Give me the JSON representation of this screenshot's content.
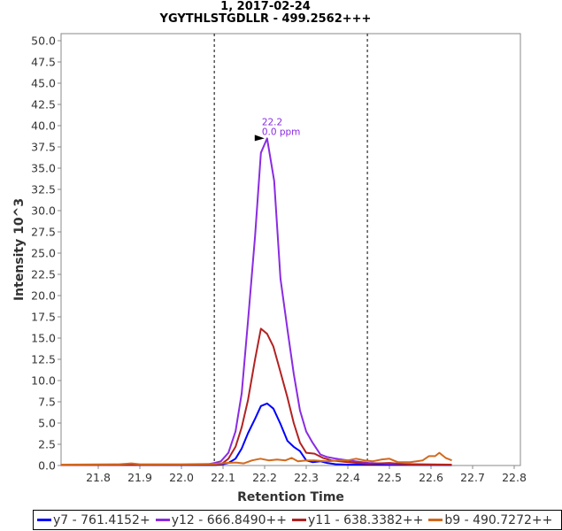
{
  "chart_data": {
    "type": "line",
    "title": "1, 2017-02-24",
    "subtitle": "YGYTHLSTGDLLR - 499.2562+++",
    "xlabel": "Retention Time",
    "ylabel": "Intensity 10^3",
    "xlim": [
      21.71,
      22.82
    ],
    "ylim": [
      0,
      51
    ],
    "xticks": [
      21.8,
      21.9,
      22.0,
      22.1,
      22.2,
      22.3,
      22.4,
      22.5,
      22.6,
      22.7,
      22.8
    ],
    "yticks": [
      0,
      2.5,
      5,
      7.5,
      10,
      12.5,
      15,
      17.5,
      20,
      22.5,
      25,
      27.5,
      30,
      32.5,
      35,
      37.5,
      40,
      42.5,
      45,
      47.5,
      50
    ],
    "boundaries": [
      22.079,
      22.447
    ],
    "annotation": {
      "x": 22.206,
      "y": 38.5,
      "lines": [
        "22.2",
        "0.0 ppm"
      ],
      "color": "#8a2be2"
    },
    "legend_position": "bottom",
    "series": [
      {
        "name": "y7 - 761.4152+",
        "color": "#0000ff",
        "points": [
          [
            21.71,
            0.05
          ],
          [
            22.08,
            0.05
          ],
          [
            22.1,
            0.15
          ],
          [
            22.113,
            0.3
          ],
          [
            22.13,
            0.8
          ],
          [
            22.145,
            2.0
          ],
          [
            22.16,
            3.8
          ],
          [
            22.177,
            5.5
          ],
          [
            22.191,
            7.0
          ],
          [
            22.206,
            7.3
          ],
          [
            22.221,
            6.7
          ],
          [
            22.238,
            4.9
          ],
          [
            22.255,
            2.9
          ],
          [
            22.27,
            2.2
          ],
          [
            22.285,
            1.7
          ],
          [
            22.3,
            0.6
          ],
          [
            22.315,
            0.4
          ],
          [
            22.334,
            0.5
          ],
          [
            22.35,
            0.3
          ],
          [
            22.372,
            0.15
          ],
          [
            22.4,
            0.1
          ],
          [
            22.65,
            0.05
          ]
        ]
      },
      {
        "name": "y12 - 666.8490++",
        "color": "#8a2be2",
        "points": [
          [
            21.71,
            0.1
          ],
          [
            22.06,
            0.1
          ],
          [
            22.08,
            0.3
          ],
          [
            22.095,
            0.5
          ],
          [
            22.113,
            1.5
          ],
          [
            22.13,
            4
          ],
          [
            22.145,
            8.5
          ],
          [
            22.16,
            17
          ],
          [
            22.177,
            27
          ],
          [
            22.191,
            36.8
          ],
          [
            22.206,
            38.5
          ],
          [
            22.223,
            33.5
          ],
          [
            22.238,
            22
          ],
          [
            22.255,
            16
          ],
          [
            22.27,
            10.8
          ],
          [
            22.285,
            6.5
          ],
          [
            22.3,
            4
          ],
          [
            22.315,
            2.7
          ],
          [
            22.334,
            1.3
          ],
          [
            22.35,
            1.0
          ],
          [
            22.372,
            0.8
          ],
          [
            22.4,
            0.6
          ],
          [
            22.45,
            0.3
          ],
          [
            22.5,
            0.2
          ],
          [
            22.65,
            0.1
          ]
        ]
      },
      {
        "name": "y11 - 638.3382++",
        "color": "#b22222",
        "points": [
          [
            21.71,
            0.05
          ],
          [
            22.08,
            0.1
          ],
          [
            22.097,
            0.2
          ],
          [
            22.113,
            0.8
          ],
          [
            22.13,
            2.2
          ],
          [
            22.145,
            4.5
          ],
          [
            22.16,
            7.7
          ],
          [
            22.177,
            12.5
          ],
          [
            22.191,
            16.1
          ],
          [
            22.206,
            15.5
          ],
          [
            22.221,
            14
          ],
          [
            22.238,
            11
          ],
          [
            22.255,
            8
          ],
          [
            22.27,
            5
          ],
          [
            22.285,
            2.7
          ],
          [
            22.3,
            1.5
          ],
          [
            22.32,
            1.4
          ],
          [
            22.34,
            0.9
          ],
          [
            22.36,
            0.6
          ],
          [
            22.4,
            0.4
          ],
          [
            22.45,
            0.2
          ],
          [
            22.5,
            0.3
          ],
          [
            22.55,
            0.1
          ],
          [
            22.65,
            0.1
          ]
        ]
      },
      {
        "name": "b9 - 490.7272++",
        "color": "#d2691e",
        "points": [
          [
            21.71,
            0.1
          ],
          [
            21.85,
            0.15
          ],
          [
            21.88,
            0.25
          ],
          [
            21.9,
            0.15
          ],
          [
            22.0,
            0.15
          ],
          [
            22.08,
            0.2
          ],
          [
            22.11,
            0.3
          ],
          [
            22.13,
            0.35
          ],
          [
            22.15,
            0.25
          ],
          [
            22.17,
            0.6
          ],
          [
            22.19,
            0.8
          ],
          [
            22.21,
            0.6
          ],
          [
            22.23,
            0.7
          ],
          [
            22.25,
            0.6
          ],
          [
            22.265,
            0.9
          ],
          [
            22.28,
            0.5
          ],
          [
            22.3,
            0.6
          ],
          [
            22.32,
            0.6
          ],
          [
            22.35,
            0.5
          ],
          [
            22.38,
            0.6
          ],
          [
            22.4,
            0.6
          ],
          [
            22.42,
            0.8
          ],
          [
            22.44,
            0.6
          ],
          [
            22.46,
            0.5
          ],
          [
            22.48,
            0.7
          ],
          [
            22.5,
            0.8
          ],
          [
            22.52,
            0.4
          ],
          [
            22.55,
            0.4
          ],
          [
            22.58,
            0.6
          ],
          [
            22.595,
            1.1
          ],
          [
            22.61,
            1.1
          ],
          [
            22.62,
            1.5
          ],
          [
            22.635,
            0.9
          ],
          [
            22.65,
            0.6
          ]
        ]
      }
    ]
  }
}
